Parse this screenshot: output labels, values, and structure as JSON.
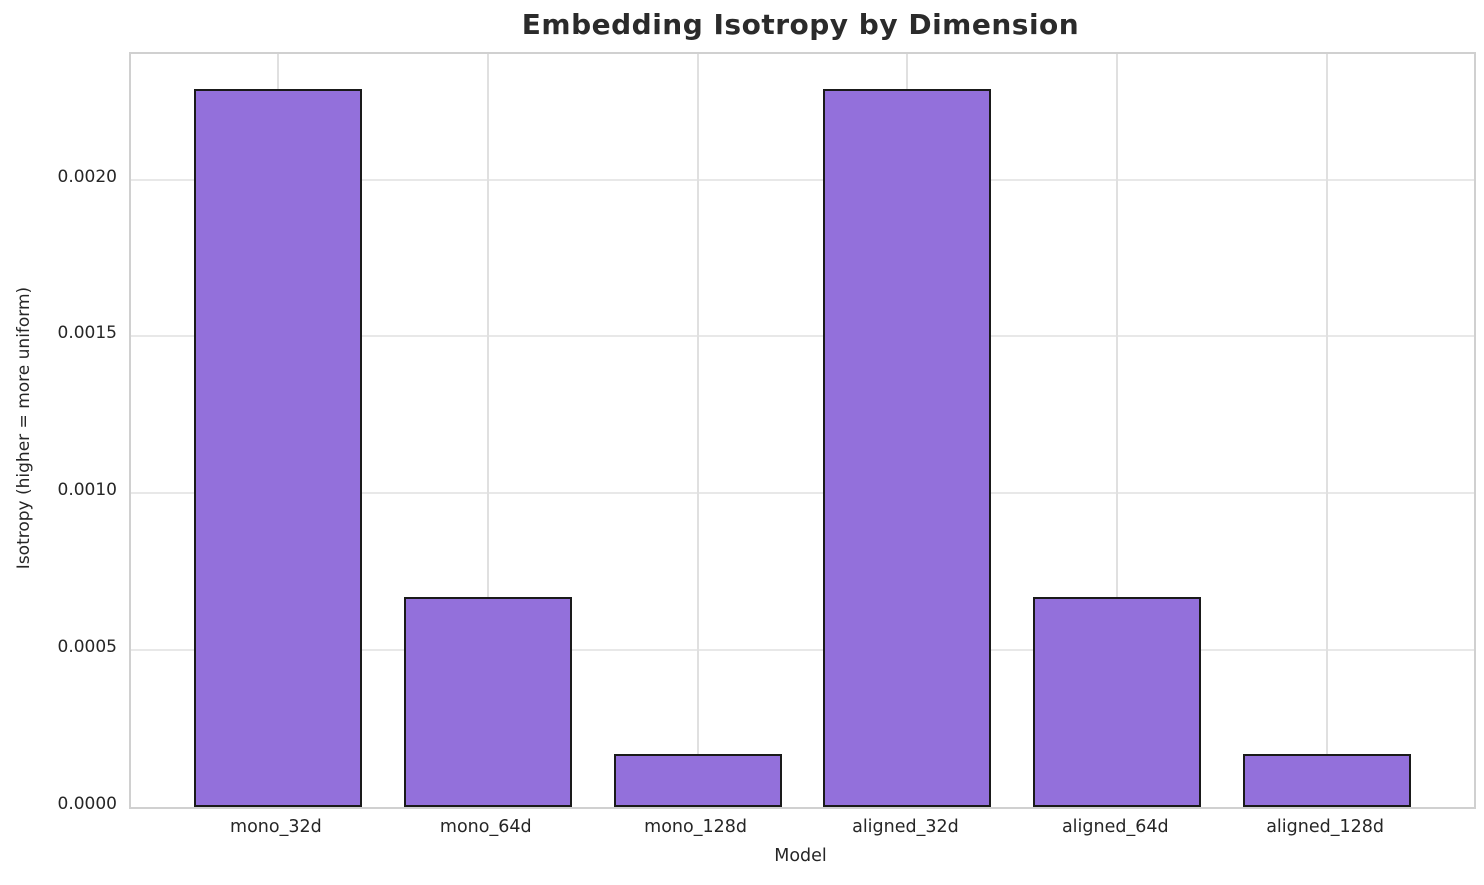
{
  "chart_data": {
    "type": "bar",
    "title": "Embedding Isotropy by Dimension",
    "xlabel": "Model",
    "ylabel": "Isotropy (higher = more uniform)",
    "categories": [
      "mono_32d",
      "mono_64d",
      "mono_128d",
      "aligned_32d",
      "aligned_64d",
      "aligned_128d"
    ],
    "values": [
      0.00229,
      0.00067,
      0.00017,
      0.00229,
      0.00067,
      0.00017
    ],
    "ylim": [
      0,
      0.0024
    ],
    "yticks": [
      0,
      0.0005,
      0.001,
      0.0015,
      0.002
    ],
    "ytick_labels": [
      "0.0000",
      "0.0005",
      "0.0010",
      "0.0015",
      "0.0020"
    ],
    "grid": true,
    "legend": "none",
    "bar_width_fraction": 0.8,
    "colors": {
      "bar_fill": "#9370DB",
      "bar_edge": "#1a1a1a",
      "grid_h": "#e8e8e8",
      "grid_v": "#e0e0e0",
      "spine": "#d0d0d0",
      "text": "#262626"
    }
  }
}
